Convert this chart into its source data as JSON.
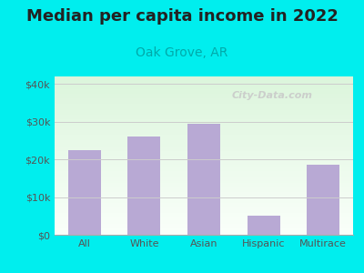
{
  "title": "Median per capita income in 2022",
  "subtitle": "Oak Grove, AR",
  "categories": [
    "All",
    "White",
    "Asian",
    "Hispanic",
    "Multirace"
  ],
  "values": [
    22500,
    26000,
    29500,
    5000,
    18500
  ],
  "bar_color": "#b8a9d4",
  "title_fontsize": 13,
  "title_fontweight": "bold",
  "title_color": "#222222",
  "subtitle_fontsize": 10,
  "subtitle_color": "#00aaaa",
  "background_outer": "#00eeee",
  "bg_top_color": "#d8efd8",
  "bg_bottom_color": "#f8fff8",
  "ylim": [
    0,
    42000
  ],
  "yticks": [
    0,
    10000,
    20000,
    30000,
    40000
  ],
  "ytick_labels": [
    "$0",
    "$10k",
    "$20k",
    "$30k",
    "$40k"
  ],
  "watermark": "City-Data.com",
  "watermark_color": "#c8c8c8",
  "grid_color": "#cccccc",
  "tick_label_fontsize": 8,
  "tick_label_color": "#555555"
}
